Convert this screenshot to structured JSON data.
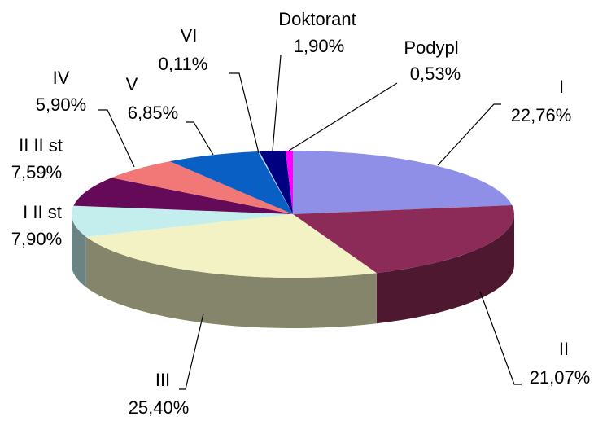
{
  "chart_data": {
    "type": "pie",
    "categories": [
      "I",
      "II",
      "III",
      "I II st",
      "II II st",
      "IV",
      "V",
      "VI",
      "Doktorant",
      "Podypl"
    ],
    "values": [
      22.76,
      21.07,
      25.4,
      7.9,
      7.59,
      5.9,
      6.85,
      0.11,
      1.9,
      0.53
    ],
    "value_labels": [
      "22,76%",
      "21,07%",
      "25,40%",
      "7,90%",
      "7,59%",
      "5,90%",
      "6,85%",
      "0,11%",
      "1,90%",
      "0,53%"
    ],
    "colors": [
      "#8f8fe8",
      "#8c2b57",
      "#f2f2c4",
      "#c4eeee",
      "#640a58",
      "#f27878",
      "#0a5fc4",
      "#b8d4f0",
      "#000080",
      "#ff00ff"
    ]
  }
}
